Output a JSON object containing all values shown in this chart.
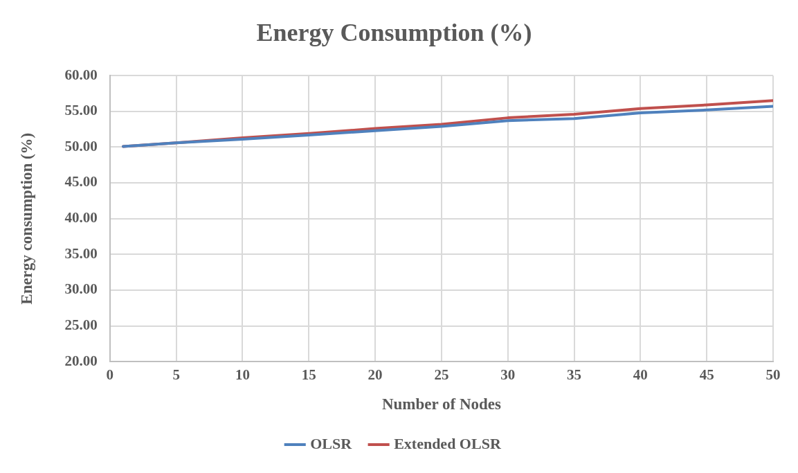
{
  "chart_data": {
    "type": "line",
    "title": "Energy Consumption (%)",
    "xlabel": "Number of Nodes",
    "ylabel": "Energy consumption (%)",
    "x": [
      1,
      5,
      10,
      15,
      20,
      25,
      30,
      35,
      40,
      45,
      50
    ],
    "series": [
      {
        "name": "OLSR",
        "color": "#4f81bd",
        "values": [
          50.1,
          50.6,
          51.1,
          51.7,
          52.3,
          52.9,
          53.7,
          54.0,
          54.8,
          55.2,
          55.7
        ]
      },
      {
        "name": "Extended OLSR",
        "color": "#c0504d",
        "values": [
          50.1,
          50.6,
          51.3,
          51.9,
          52.6,
          53.2,
          54.1,
          54.6,
          55.4,
          55.9,
          56.5
        ]
      }
    ],
    "xlim": [
      0,
      50
    ],
    "xticks": [
      0,
      5,
      10,
      15,
      20,
      25,
      30,
      35,
      40,
      45,
      50
    ],
    "ylim": [
      20,
      60
    ],
    "yticks": [
      {
        "value": 20,
        "label": "20.00"
      },
      {
        "value": 25,
        "label": "25.00"
      },
      {
        "value": 30,
        "label": "30.00"
      },
      {
        "value": 35,
        "label": "35.00"
      },
      {
        "value": 40,
        "label": "40.00"
      },
      {
        "value": 45,
        "label": "45.00"
      },
      {
        "value": 50,
        "label": "50.00"
      },
      {
        "value": 55,
        "label": "55.00"
      },
      {
        "value": 60,
        "label": "60.00"
      }
    ],
    "grid": true,
    "legend": "bottom"
  }
}
